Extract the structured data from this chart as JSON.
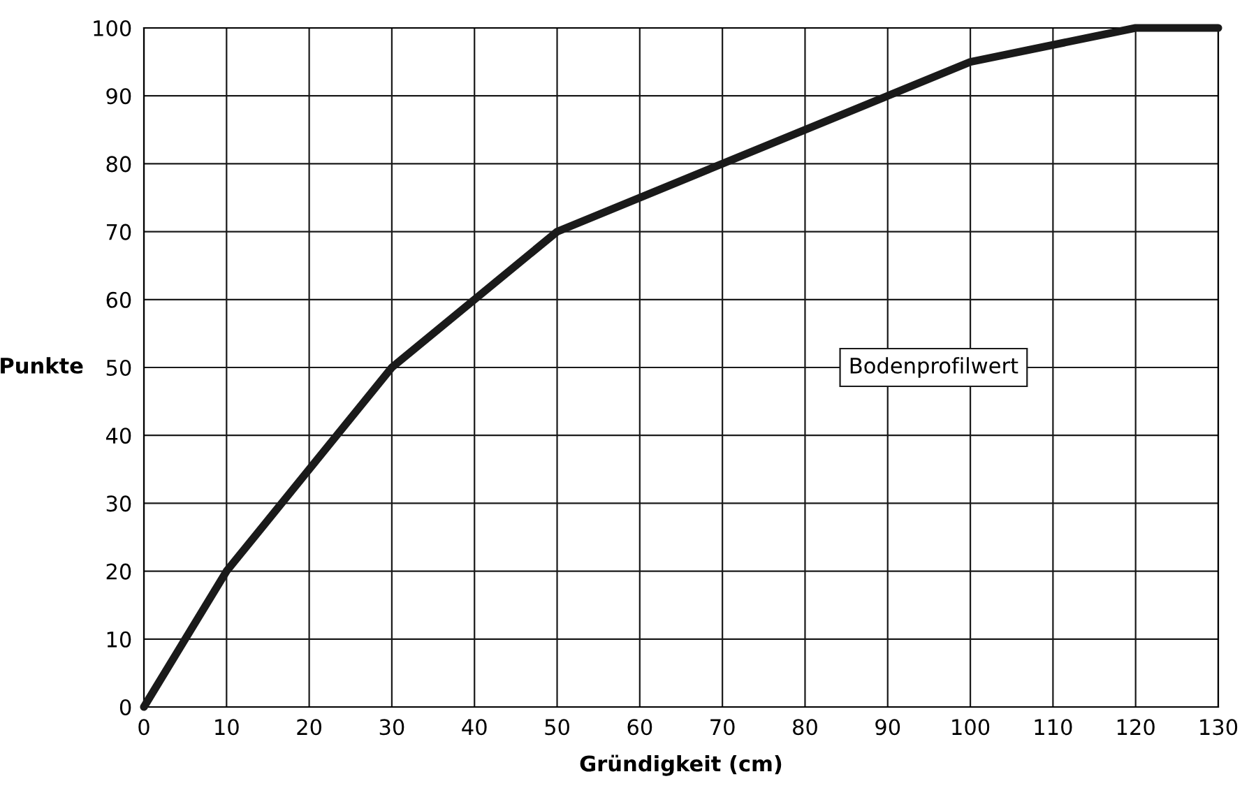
{
  "chart_data": {
    "type": "line",
    "xlabel": "Gründigkeit (cm)",
    "ylabel": "Punkte",
    "annotations": [
      "Bodenprofilwert"
    ],
    "x": [
      0,
      10,
      30,
      50,
      100,
      120,
      130
    ],
    "series": [
      {
        "color": "#1a1a1a",
        "values": [
          0,
          20,
          50,
          70,
          95,
          100,
          100
        ]
      }
    ],
    "xlim": [
      0,
      130
    ],
    "ylim": [
      0,
      100
    ],
    "xticks": [
      0,
      10,
      20,
      30,
      40,
      50,
      60,
      70,
      80,
      90,
      100,
      110,
      120,
      130
    ],
    "yticks": [
      0,
      10,
      20,
      30,
      40,
      50,
      60,
      70,
      80,
      90,
      100
    ],
    "grid": true,
    "marker": "none",
    "line_style": "solid"
  }
}
